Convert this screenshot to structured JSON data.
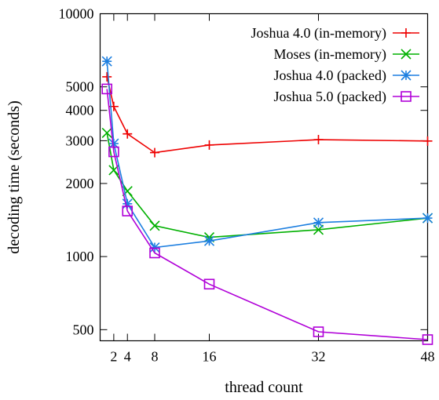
{
  "chart_data": {
    "type": "line",
    "xlabel": "thread count",
    "ylabel": "decoding time (seconds)",
    "ylog": true,
    "xlim": [
      0,
      48
    ],
    "ylim": [
      450,
      10000
    ],
    "x_ticks": [
      2,
      4,
      8,
      16,
      32,
      48
    ],
    "y_ticks": [
      500,
      1000,
      2000,
      3000,
      4000,
      5000,
      10000
    ],
    "grid": false,
    "legend_position": "top-right",
    "series": [
      {
        "name": "Joshua 4.0 (in-memory)",
        "color": "#ee0000",
        "marker": "plus",
        "points": [
          [
            1,
            5500
          ],
          [
            2,
            4150
          ],
          [
            4,
            3200
          ],
          [
            8,
            2680
          ],
          [
            16,
            2880
          ],
          [
            32,
            3030
          ],
          [
            48,
            2990
          ]
        ]
      },
      {
        "name": "Moses (in-memory)",
        "color": "#00b000",
        "marker": "x",
        "points": [
          [
            1,
            3230
          ],
          [
            2,
            2270
          ],
          [
            4,
            1860
          ],
          [
            8,
            1340
          ],
          [
            16,
            1200
          ],
          [
            32,
            1290
          ],
          [
            48,
            1440
          ]
        ]
      },
      {
        "name": "Joshua 4.0 (packed)",
        "color": "#1d7fe0",
        "marker": "asterisk",
        "points": [
          [
            1,
            6370
          ],
          [
            2,
            2920
          ],
          [
            4,
            1650
          ],
          [
            8,
            1090
          ],
          [
            16,
            1160
          ],
          [
            32,
            1380
          ],
          [
            48,
            1440
          ]
        ]
      },
      {
        "name": "Joshua 5.0 (packed)",
        "color": "#b000d8",
        "marker": "square",
        "points": [
          [
            1,
            4900
          ],
          [
            2,
            2700
          ],
          [
            4,
            1540
          ],
          [
            8,
            1035
          ],
          [
            16,
            770
          ],
          [
            32,
            490
          ],
          [
            48,
            455
          ]
        ]
      }
    ]
  }
}
